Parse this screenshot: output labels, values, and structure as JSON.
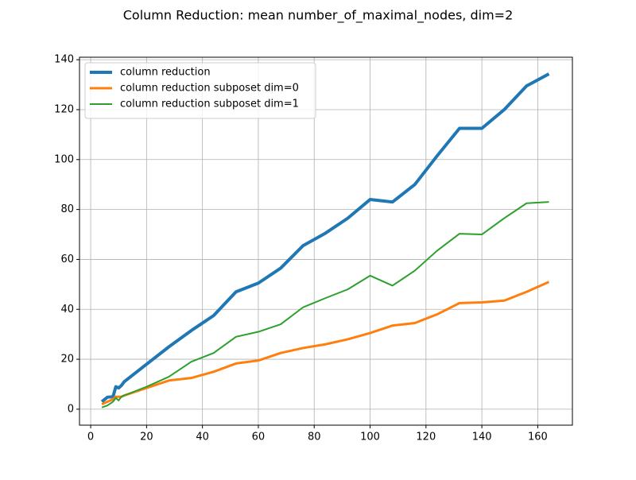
{
  "chart_data": {
    "type": "line",
    "title": "Column Reduction: mean number_of_maximal_nodes, dim=2",
    "x": [
      4,
      6,
      8,
      9,
      10,
      11,
      12,
      20,
      28,
      36,
      44,
      52,
      60,
      68,
      76,
      84,
      92,
      100,
      108,
      116,
      124,
      132,
      140,
      148,
      156,
      164
    ],
    "series": [
      {
        "name": "column reduction",
        "color": "#1f77b4",
        "width": 4,
        "values": [
          3,
          4.8,
          5,
          9,
          8.5,
          9.5,
          11,
          18,
          25,
          31.5,
          37.5,
          47,
          50.5,
          56.5,
          65.5,
          70.5,
          76.5,
          84,
          83,
          90,
          101.5,
          112.5,
          112.5,
          120,
          129.5,
          134.3
        ]
      },
      {
        "name": "column reduction subposet dim=0",
        "color": "#ff7f0e",
        "width": 3,
        "values": [
          2,
          3,
          4,
          5,
          5,
          5,
          5.5,
          8.5,
          11.5,
          12.5,
          15,
          18.3,
          19.5,
          22.5,
          24.5,
          26,
          28,
          30.5,
          33.5,
          34.5,
          38,
          42.5,
          42.8,
          43.5,
          47,
          51
        ]
      },
      {
        "name": "column reduction subposet dim=1",
        "color": "#2ca02c",
        "width": 2,
        "values": [
          0.7,
          1.5,
          3,
          4.5,
          3.5,
          5,
          5.5,
          9,
          13,
          19,
          22.5,
          29,
          31,
          34,
          40.8,
          44.5,
          48,
          53.5,
          49.5,
          55.5,
          63.5,
          70.3,
          70,
          76.5,
          82.5,
          83
        ]
      }
    ],
    "xlim": [
      -4,
      172.4
    ],
    "ylim": [
      -6.4,
      141
    ],
    "xticks": [
      0,
      20,
      40,
      60,
      80,
      100,
      120,
      140,
      160
    ],
    "yticks": [
      0,
      20,
      40,
      60,
      80,
      100,
      120,
      140
    ],
    "grid": true,
    "legend": "upper-left"
  }
}
